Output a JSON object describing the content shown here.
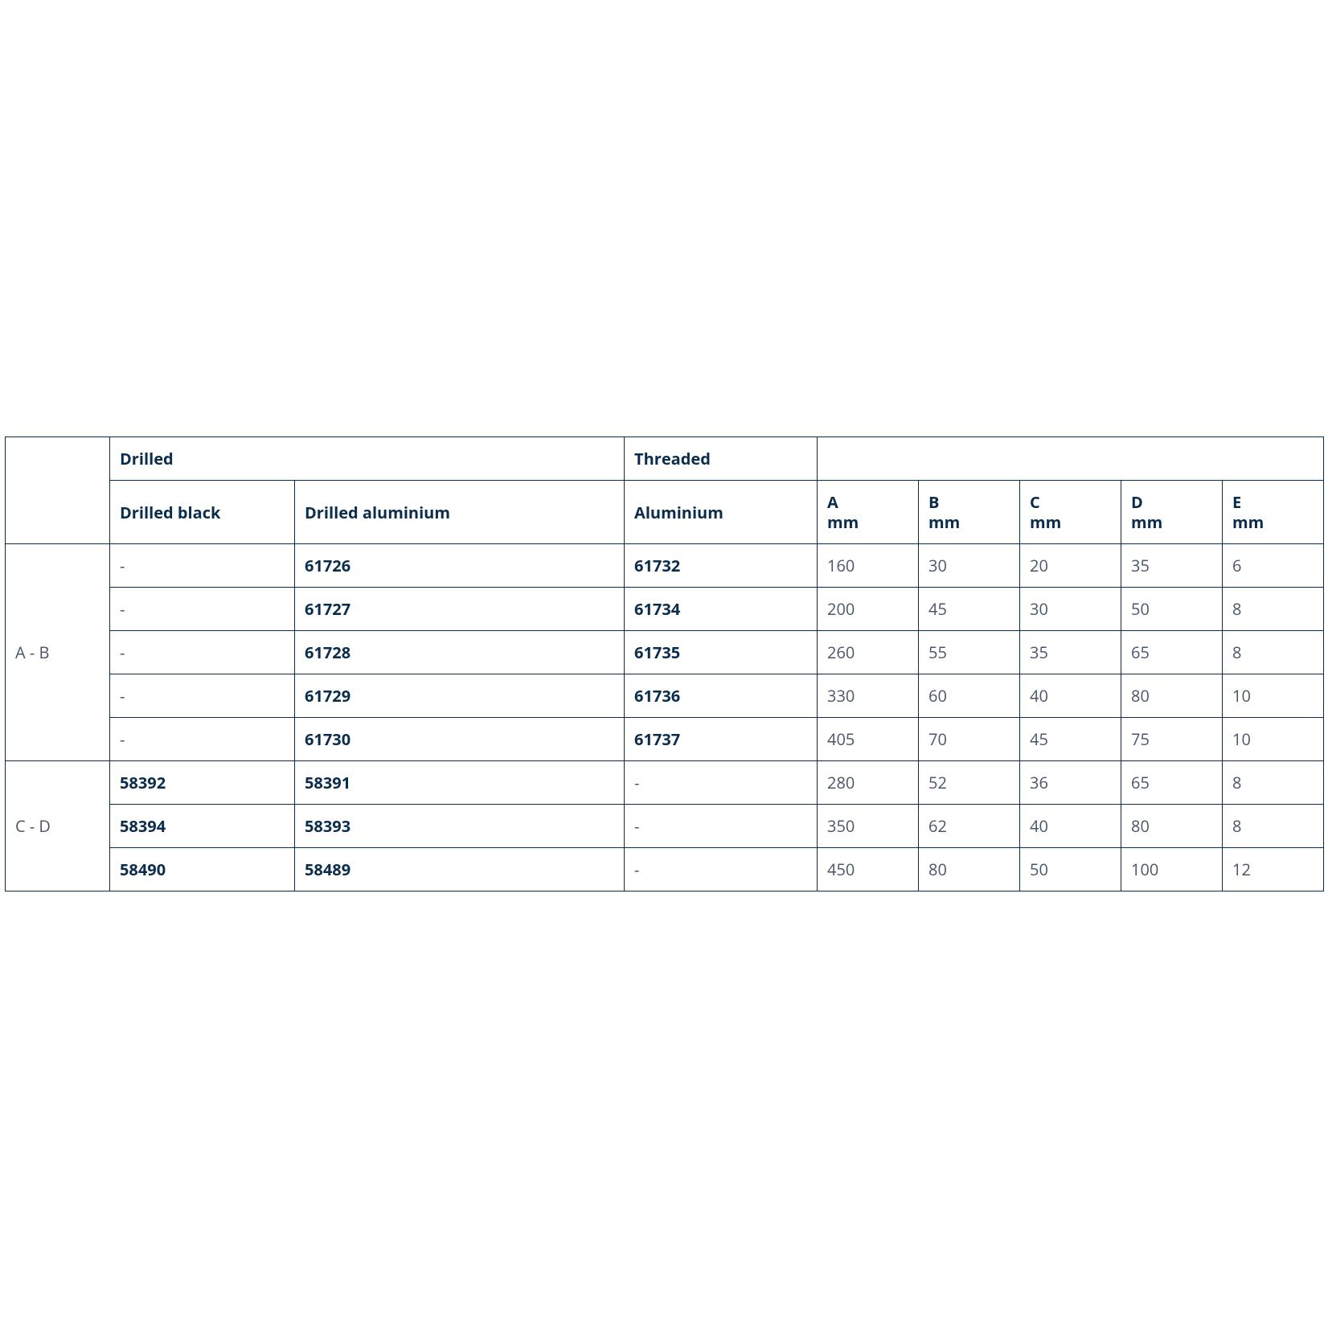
{
  "table": {
    "colors": {
      "border": "#0a2d4d",
      "header_text": "#0a2d4d",
      "body_text": "#4a5568",
      "background": "#ffffff"
    },
    "typography": {
      "font_family": "Segoe UI / Open Sans / Arial",
      "font_size_pt": 15,
      "header_weight": 700,
      "body_weight": 400
    },
    "header_top": {
      "drilled": "Drilled",
      "threaded": "Threaded"
    },
    "header_sub": {
      "drilled_black": "Drilled black",
      "drilled_aluminium": "Drilled aluminium",
      "aluminium": "Aluminium",
      "dims": [
        {
          "label": "A",
          "unit": "mm"
        },
        {
          "label": "B",
          "unit": "mm"
        },
        {
          "label": "C",
          "unit": "mm"
        },
        {
          "label": "D",
          "unit": "mm"
        },
        {
          "label": "E",
          "unit": "mm"
        }
      ]
    },
    "groups": [
      {
        "label": "A - B",
        "rows": [
          {
            "drilled_black": "-",
            "drilled_aluminium": "61726",
            "aluminium": "61732",
            "A": "160",
            "B": "30",
            "C": "20",
            "D": "35",
            "E": "6"
          },
          {
            "drilled_black": "-",
            "drilled_aluminium": "61727",
            "aluminium": "61734",
            "A": "200",
            "B": "45",
            "C": "30",
            "D": "50",
            "E": "8"
          },
          {
            "drilled_black": "-",
            "drilled_aluminium": "61728",
            "aluminium": "61735",
            "A": "260",
            "B": "55",
            "C": "35",
            "D": "65",
            "E": "8"
          },
          {
            "drilled_black": "-",
            "drilled_aluminium": "61729",
            "aluminium": "61736",
            "A": "330",
            "B": "60",
            "C": "40",
            "D": "80",
            "E": "10"
          },
          {
            "drilled_black": "-",
            "drilled_aluminium": "61730",
            "aluminium": "61737",
            "A": "405",
            "B": "70",
            "C": "45",
            "D": "75",
            "E": "10"
          }
        ]
      },
      {
        "label": "C - D",
        "rows": [
          {
            "drilled_black": "58392",
            "drilled_aluminium": "58391",
            "aluminium": "-",
            "A": "280",
            "B": "52",
            "C": "36",
            "D": "65",
            "E": "8"
          },
          {
            "drilled_black": "58394",
            "drilled_aluminium": "58393",
            "aluminium": "-",
            "A": "350",
            "B": "62",
            "C": "40",
            "D": "80",
            "E": "8"
          },
          {
            "drilled_black": "58490",
            "drilled_aluminium": "58489",
            "aluminium": "-",
            "A": "450",
            "B": "80",
            "C": "50",
            "D": "100",
            "E": "12"
          }
        ]
      }
    ]
  }
}
